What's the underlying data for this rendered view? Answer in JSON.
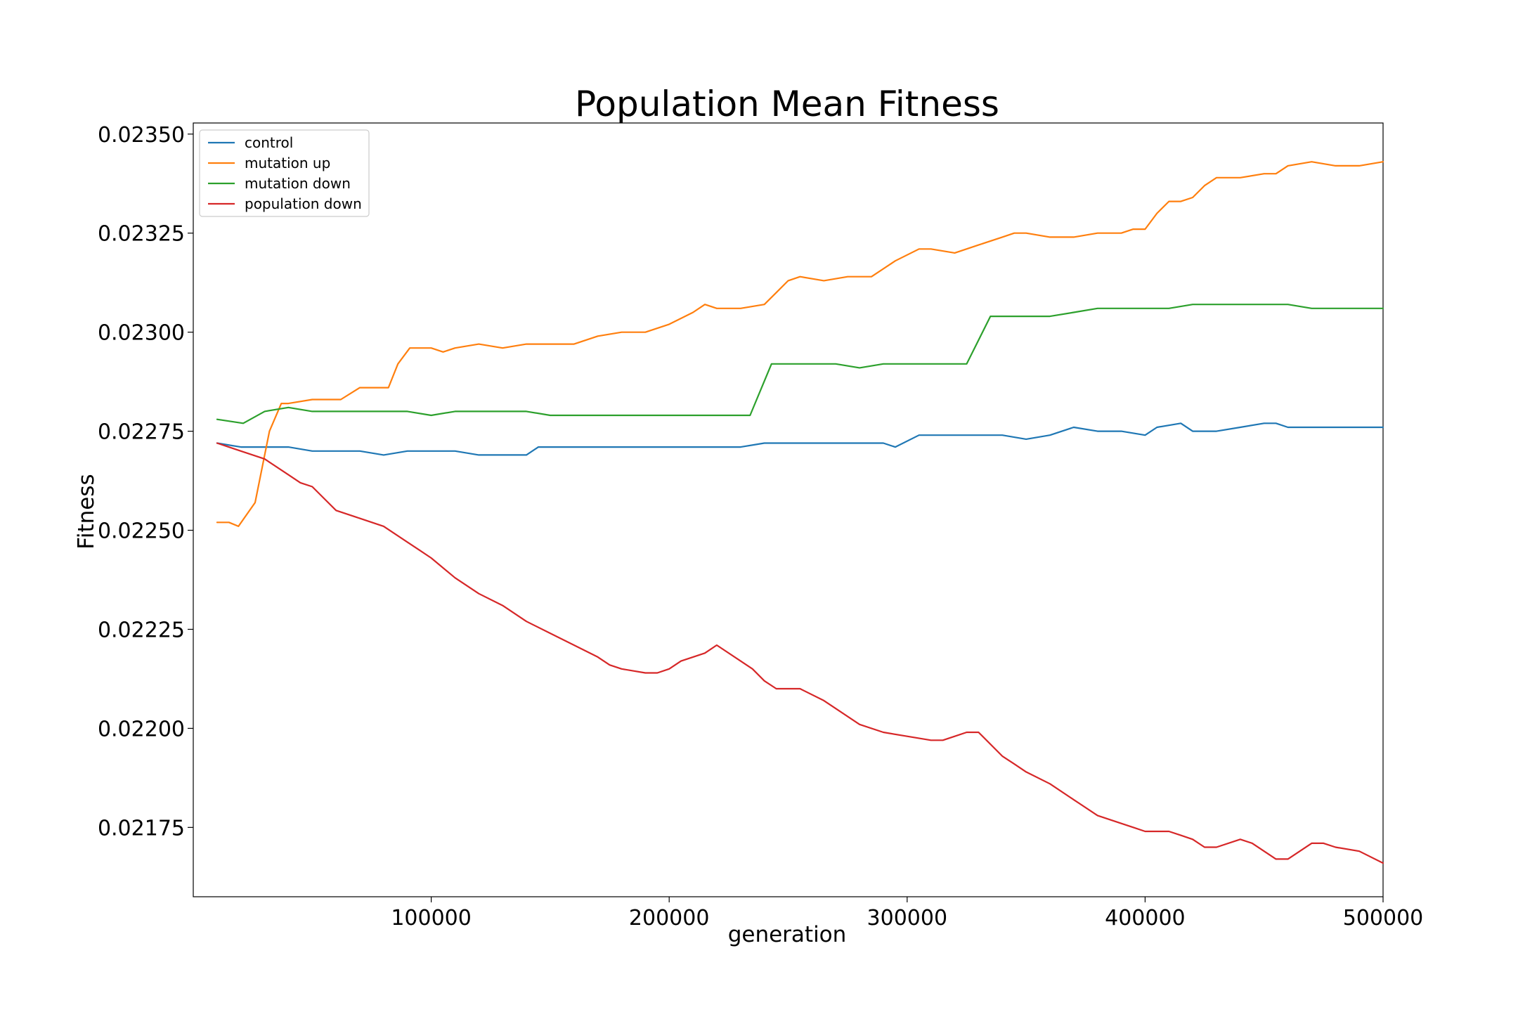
{
  "chart_data": {
    "type": "line",
    "title": "Population Mean Fitness",
    "xlabel": "generation",
    "ylabel": "Fitness",
    "xlim": [
      0,
      500000
    ],
    "ylim": [
      0.021575,
      0.023528
    ],
    "xticks": [
      100000,
      200000,
      300000,
      400000,
      500000
    ],
    "xtick_labels": [
      "100000",
      "200000",
      "300000",
      "400000",
      "500000"
    ],
    "yticks": [
      0.02175,
      0.022,
      0.02225,
      0.0225,
      0.02275,
      0.023,
      0.02325,
      0.0235
    ],
    "ytick_labels": [
      "0.02175",
      "0.02200",
      "0.02225",
      "0.02250",
      "0.02275",
      "0.02300",
      "0.02325",
      "0.02350"
    ],
    "grid": false,
    "legend_position": "top-left",
    "series": [
      {
        "name": "control",
        "color": "#1f77b4",
        "x": [
          10000,
          20000,
          30000,
          40000,
          50000,
          60000,
          70000,
          80000,
          90000,
          100000,
          110000,
          120000,
          130000,
          140000,
          145000,
          150000,
          160000,
          170000,
          180000,
          190000,
          200000,
          210000,
          220000,
          230000,
          240000,
          250000,
          260000,
          270000,
          280000,
          290000,
          295000,
          305000,
          320000,
          330000,
          340000,
          350000,
          360000,
          370000,
          380000,
          390000,
          400000,
          405000,
          415000,
          420000,
          430000,
          440000,
          450000,
          455000,
          460000,
          470000,
          480000,
          490000,
          500000
        ],
        "values": [
          0.02272,
          0.02271,
          0.02271,
          0.02271,
          0.0227,
          0.0227,
          0.0227,
          0.02269,
          0.0227,
          0.0227,
          0.0227,
          0.02269,
          0.02269,
          0.02269,
          0.02271,
          0.02271,
          0.02271,
          0.02271,
          0.02271,
          0.02271,
          0.02271,
          0.02271,
          0.02271,
          0.02271,
          0.02272,
          0.02272,
          0.02272,
          0.02272,
          0.02272,
          0.02272,
          0.02271,
          0.02274,
          0.02274,
          0.02274,
          0.02274,
          0.02273,
          0.02274,
          0.02276,
          0.02275,
          0.02275,
          0.02274,
          0.02276,
          0.02277,
          0.02275,
          0.02275,
          0.02276,
          0.02277,
          0.02277,
          0.02276,
          0.02276,
          0.02276,
          0.02276,
          0.02276
        ]
      },
      {
        "name": "mutation up",
        "color": "#ff7f0e",
        "x": [
          10000,
          15000,
          19000,
          26000,
          32000,
          37000,
          40000,
          50000,
          56000,
          62000,
          70000,
          82000,
          86000,
          91000,
          100000,
          105000,
          110000,
          120000,
          130000,
          140000,
          150000,
          160000,
          170000,
          180000,
          190000,
          200000,
          210000,
          215000,
          220000,
          230000,
          240000,
          245000,
          250000,
          255000,
          265000,
          275000,
          285000,
          295000,
          305000,
          310000,
          320000,
          330000,
          340000,
          345000,
          350000,
          360000,
          370000,
          380000,
          385000,
          390000,
          395000,
          400000,
          405000,
          410000,
          415000,
          420000,
          425000,
          430000,
          440000,
          450000,
          455000,
          460000,
          470000,
          480000,
          490000,
          500000
        ],
        "values": [
          0.02252,
          0.02252,
          0.02251,
          0.02257,
          0.02275,
          0.02282,
          0.02282,
          0.02283,
          0.02283,
          0.02283,
          0.02286,
          0.02286,
          0.02292,
          0.02296,
          0.02296,
          0.02295,
          0.02296,
          0.02297,
          0.02296,
          0.02297,
          0.02297,
          0.02297,
          0.02299,
          0.023,
          0.023,
          0.02302,
          0.02305,
          0.02307,
          0.02306,
          0.02306,
          0.02307,
          0.0231,
          0.02313,
          0.02314,
          0.02313,
          0.02314,
          0.02314,
          0.02318,
          0.02321,
          0.02321,
          0.0232,
          0.02322,
          0.02324,
          0.02325,
          0.02325,
          0.02324,
          0.02324,
          0.02325,
          0.02325,
          0.02325,
          0.02326,
          0.02326,
          0.0233,
          0.02333,
          0.02333,
          0.02334,
          0.02337,
          0.02339,
          0.02339,
          0.0234,
          0.0234,
          0.02342,
          0.02343,
          0.02342,
          0.02342,
          0.02343
        ]
      },
      {
        "name": "mutation down",
        "color": "#2ca02c",
        "x": [
          10000,
          21000,
          30000,
          40000,
          50000,
          60000,
          70000,
          80000,
          90000,
          100000,
          110000,
          120000,
          130000,
          140000,
          150000,
          160000,
          170000,
          180000,
          190000,
          200000,
          210000,
          220000,
          234000,
          243000,
          250000,
          260000,
          270000,
          280000,
          290000,
          300000,
          310000,
          316000,
          325000,
          335000,
          340000,
          350000,
          360000,
          370000,
          380000,
          390000,
          400000,
          410000,
          420000,
          430000,
          440000,
          450000,
          460000,
          470000,
          480000,
          490000,
          500000
        ],
        "values": [
          0.02278,
          0.02277,
          0.0228,
          0.02281,
          0.0228,
          0.0228,
          0.0228,
          0.0228,
          0.0228,
          0.02279,
          0.0228,
          0.0228,
          0.0228,
          0.0228,
          0.02279,
          0.02279,
          0.02279,
          0.02279,
          0.02279,
          0.02279,
          0.02279,
          0.02279,
          0.02279,
          0.02292,
          0.02292,
          0.02292,
          0.02292,
          0.02291,
          0.02292,
          0.02292,
          0.02292,
          0.02292,
          0.02292,
          0.02304,
          0.02304,
          0.02304,
          0.02304,
          0.02305,
          0.02306,
          0.02306,
          0.02306,
          0.02306,
          0.02307,
          0.02307,
          0.02307,
          0.02307,
          0.02307,
          0.02306,
          0.02306,
          0.02306,
          0.02306
        ]
      },
      {
        "name": "population down",
        "color": "#d62728",
        "x": [
          10000,
          20000,
          30000,
          40000,
          45000,
          50000,
          55000,
          60000,
          70000,
          80000,
          85000,
          90000,
          95000,
          100000,
          110000,
          120000,
          130000,
          140000,
          150000,
          160000,
          170000,
          175000,
          180000,
          190000,
          195000,
          200000,
          205000,
          210000,
          215000,
          220000,
          230000,
          235000,
          240000,
          245000,
          255000,
          265000,
          270000,
          280000,
          290000,
          300000,
          310000,
          315000,
          320000,
          325000,
          330000,
          340000,
          345000,
          350000,
          360000,
          370000,
          380000,
          385000,
          390000,
          395000,
          400000,
          410000,
          415000,
          420000,
          425000,
          430000,
          440000,
          445000,
          450000,
          455000,
          460000,
          465000,
          470000,
          475000,
          480000,
          490000,
          500000
        ],
        "values": [
          0.02272,
          0.0227,
          0.02268,
          0.02264,
          0.02262,
          0.02261,
          0.02258,
          0.02255,
          0.02253,
          0.02251,
          0.02249,
          0.02247,
          0.02245,
          0.02243,
          0.02238,
          0.02234,
          0.02231,
          0.02227,
          0.02224,
          0.02221,
          0.02218,
          0.02216,
          0.02215,
          0.02214,
          0.02214,
          0.02215,
          0.02217,
          0.02218,
          0.02219,
          0.02221,
          0.02217,
          0.02215,
          0.02212,
          0.0221,
          0.0221,
          0.02207,
          0.02205,
          0.02201,
          0.02199,
          0.02198,
          0.02197,
          0.02197,
          0.02198,
          0.02199,
          0.02199,
          0.02193,
          0.02191,
          0.02189,
          0.02186,
          0.02182,
          0.02178,
          0.02177,
          0.02176,
          0.02175,
          0.02174,
          0.02174,
          0.02173,
          0.02172,
          0.0217,
          0.0217,
          0.02172,
          0.02171,
          0.02169,
          0.02167,
          0.02167,
          0.02169,
          0.02171,
          0.02171,
          0.0217,
          0.02169,
          0.02166
        ]
      }
    ]
  }
}
